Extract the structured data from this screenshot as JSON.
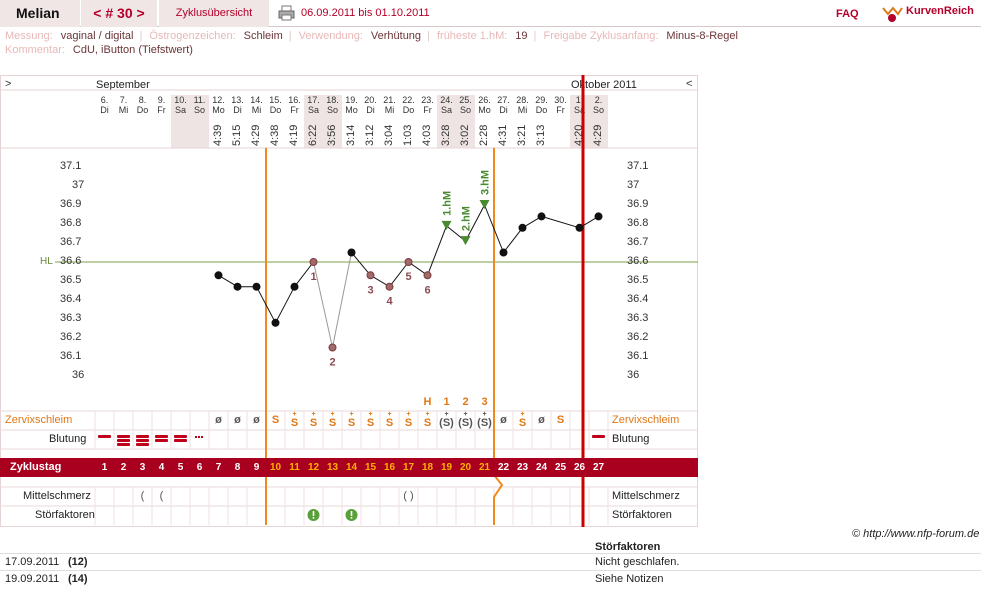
{
  "topbar": {
    "user": "Melian",
    "cycle_label": "< # 30 >",
    "overview_label": "Zyklusübersicht",
    "date_range": "06.09.2011 bis 01.10.2011",
    "faq": "FAQ",
    "logo_text": "KurvenReich"
  },
  "info": {
    "messung_label": "Messung:",
    "messung_value": "vaginal / digital",
    "oestrogen_label": "Östrogenzeichen:",
    "oestrogen_value": "Schleim",
    "verwendung_label": "Verwendung:",
    "verwendung_value": "Verhütung",
    "hm_label": "früheste 1.hM:",
    "hm_value": "19",
    "freigabe_label": "Freigabe Zyklusanfang:",
    "freigabe_value": "Minus-8-Regel",
    "kommentar_label": "Kommentar:",
    "kommentar_value": "CdU, iButton (Tiefstwert)"
  },
  "chart_nav": {
    "left": ">",
    "right": "<",
    "month_left": "September",
    "month_right": "Oktober 2011"
  },
  "days": [
    {
      "num": "6.",
      "wd": "Di",
      "time": "",
      "cycle": "1",
      "shade": false
    },
    {
      "num": "7.",
      "wd": "Mi",
      "time": "",
      "cycle": "2",
      "shade": false
    },
    {
      "num": "8.",
      "wd": "Do",
      "time": "",
      "cycle": "3",
      "shade": false
    },
    {
      "num": "9.",
      "wd": "Fr",
      "time": "",
      "cycle": "4",
      "shade": false
    },
    {
      "num": "10.",
      "wd": "Sa",
      "time": "",
      "cycle": "5",
      "shade": true
    },
    {
      "num": "11.",
      "wd": "So",
      "time": "",
      "cycle": "6",
      "shade": true
    },
    {
      "num": "12.",
      "wd": "Mo",
      "time": "4:39",
      "cycle": "7",
      "shade": false
    },
    {
      "num": "13.",
      "wd": "Di",
      "time": "5:15",
      "cycle": "8",
      "shade": false
    },
    {
      "num": "14.",
      "wd": "Mi",
      "time": "4:29",
      "cycle": "9",
      "shade": false
    },
    {
      "num": "15.",
      "wd": "Do",
      "time": "4:38",
      "cycle": "10",
      "shade": false
    },
    {
      "num": "16.",
      "wd": "Fr",
      "time": "4:19",
      "cycle": "11",
      "shade": false
    },
    {
      "num": "17.",
      "wd": "Sa",
      "time": "6:22",
      "cycle": "12",
      "shade": true
    },
    {
      "num": "18.",
      "wd": "So",
      "time": "3:56",
      "cycle": "13",
      "shade": true
    },
    {
      "num": "19.",
      "wd": "Mo",
      "time": "3:14",
      "cycle": "14",
      "shade": false
    },
    {
      "num": "20.",
      "wd": "Di",
      "time": "3:12",
      "cycle": "15",
      "shade": false
    },
    {
      "num": "21.",
      "wd": "Mi",
      "time": "3:04",
      "cycle": "16",
      "shade": false
    },
    {
      "num": "22.",
      "wd": "Do",
      "time": "1:03",
      "cycle": "17",
      "shade": false
    },
    {
      "num": "23.",
      "wd": "Fr",
      "time": "4:03",
      "cycle": "18",
      "shade": false
    },
    {
      "num": "24.",
      "wd": "Sa",
      "time": "3:28",
      "cycle": "19",
      "shade": true
    },
    {
      "num": "25.",
      "wd": "So",
      "time": "3:02",
      "cycle": "20",
      "shade": true
    },
    {
      "num": "26.",
      "wd": "Mo",
      "time": "2:28",
      "cycle": "21",
      "shade": false
    },
    {
      "num": "27.",
      "wd": "Di",
      "time": "4:31",
      "cycle": "22",
      "shade": false
    },
    {
      "num": "28.",
      "wd": "Mi",
      "time": "3:21",
      "cycle": "23",
      "shade": false
    },
    {
      "num": "29.",
      "wd": "Do",
      "time": "3:13",
      "cycle": "24",
      "shade": false
    },
    {
      "num": "30.",
      "wd": "Fr",
      "time": "",
      "cycle": "25",
      "shade": false
    },
    {
      "num": "1.",
      "wd": "Sa",
      "time": "4:20",
      "cycle": "26",
      "shade": true
    },
    {
      "num": "2.",
      "wd": "So",
      "time": "4:29",
      "cycle": "27",
      "shade": true
    }
  ],
  "chart_data": {
    "type": "line",
    "y_ticks": [
      "37.1",
      "37",
      "36.9",
      "36.8",
      "36.7",
      "36.6",
      "36.5",
      "36.4",
      "36.3",
      "36.2",
      "36.1",
      "36"
    ],
    "ylim": [
      36.0,
      37.1
    ],
    "hl_label": "HL",
    "hl_value": 36.6,
    "cycle_days": [
      7,
      8,
      9,
      10,
      11,
      12,
      13,
      14,
      15,
      16,
      17,
      18,
      19,
      20,
      21,
      22,
      23,
      24,
      25,
      26,
      27
    ],
    "temps": [
      36.53,
      36.47,
      36.47,
      36.28,
      36.47,
      36.6,
      36.15,
      36.65,
      36.53,
      36.47,
      36.6,
      36.53,
      36.79,
      36.71,
      36.9,
      36.65,
      36.78,
      36.84,
      null,
      36.78,
      36.84
    ],
    "annotations": [
      {
        "day": 12,
        "text": "1"
      },
      {
        "day": 13,
        "text": "2"
      },
      {
        "day": 15,
        "text": "3"
      },
      {
        "day": 16,
        "text": "4"
      },
      {
        "day": 17,
        "text": "5"
      },
      {
        "day": 18,
        "text": "6"
      },
      {
        "day": 19,
        "text": "1.hM"
      },
      {
        "day": 20,
        "text": "2.hM"
      },
      {
        "day": 21,
        "text": "3.hM"
      }
    ]
  },
  "rows": {
    "zervix_label": "Zervixschleim",
    "blutung_label": "Blutung",
    "zyklustag_label": "Zyklustag",
    "mittelschmerz_label": "Mittelschmerz",
    "stoerfaktoren_label": "Störfaktoren"
  },
  "zervix": [
    "",
    "",
    "",
    "",
    "",
    "",
    "ø",
    "ø",
    "ø",
    "S",
    "S+",
    "S+",
    "S+",
    "S+",
    "S+",
    "S+",
    "S+",
    "S+",
    "(S)+",
    "(S)+",
    "(S)+",
    "ø",
    "S+",
    "ø",
    "S",
    "",
    ""
  ],
  "peak_marks": [
    "",
    "",
    "",
    "",
    "",
    "",
    "",
    "",
    "",
    "",
    "",
    "",
    "",
    "",
    "",
    "",
    "",
    "H",
    "1",
    "2",
    "3",
    "",
    "",
    "",
    "",
    "",
    ""
  ],
  "copyright": "© http://www.nfp-forum.de",
  "stoer_table": {
    "header": "Störfaktoren",
    "rows": [
      {
        "date": "17.09.2011",
        "day": "(12)",
        "text": "Nicht geschlafen."
      },
      {
        "date": "19.09.2011",
        "day": "(14)",
        "text": "Siehe Notizen"
      }
    ]
  }
}
